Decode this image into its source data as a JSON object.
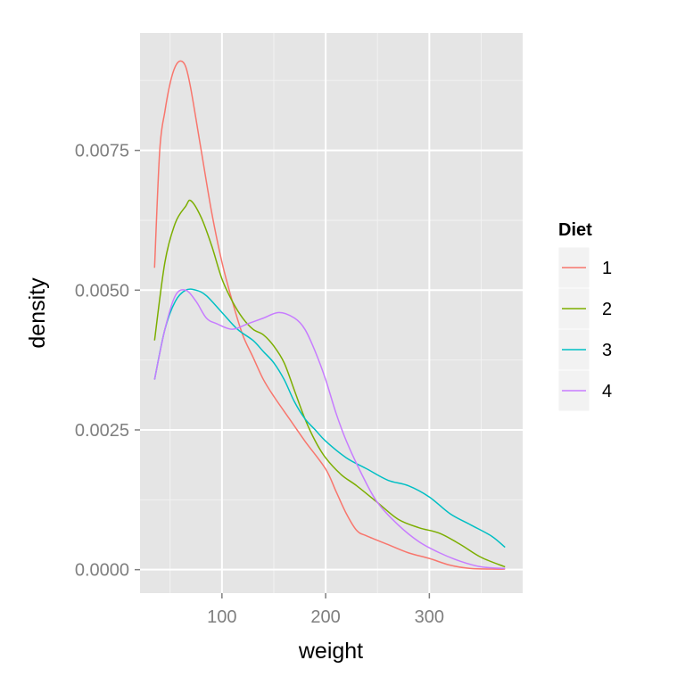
{
  "chart_data": {
    "type": "line",
    "xlabel": "weight",
    "ylabel": "density",
    "xlim": [
      21,
      390
    ],
    "ylim": [
      -0.00042,
      0.0096
    ],
    "x_ticks": [
      {
        "value": 100,
        "label": "100"
      },
      {
        "value": 200,
        "label": "200"
      },
      {
        "value": 300,
        "label": "300"
      }
    ],
    "y_ticks": [
      {
        "value": 0.0,
        "label": "0.0000"
      },
      {
        "value": 0.0025,
        "label": "0.0025"
      },
      {
        "value": 0.005,
        "label": "0.0050"
      },
      {
        "value": 0.0075,
        "label": "0.0075"
      }
    ],
    "grid": true,
    "legend": {
      "title": "Diet",
      "position": "right"
    },
    "series": [
      {
        "name": "1",
        "color": "#F8766D",
        "points": [
          [
            35,
            0.0054
          ],
          [
            40,
            0.0075
          ],
          [
            45,
            0.0082
          ],
          [
            50,
            0.0087
          ],
          [
            55,
            0.009
          ],
          [
            60,
            0.0091
          ],
          [
            65,
            0.009
          ],
          [
            70,
            0.0086
          ],
          [
            80,
            0.0075
          ],
          [
            90,
            0.0064
          ],
          [
            100,
            0.0055
          ],
          [
            110,
            0.0048
          ],
          [
            120,
            0.0042
          ],
          [
            130,
            0.0038
          ],
          [
            140,
            0.0034
          ],
          [
            150,
            0.0031
          ],
          [
            165,
            0.0027
          ],
          [
            180,
            0.0023
          ],
          [
            200,
            0.0018
          ],
          [
            210,
            0.0014
          ],
          [
            220,
            0.001
          ],
          [
            230,
            0.0007
          ],
          [
            240,
            0.0006
          ],
          [
            260,
            0.00045
          ],
          [
            280,
            0.0003
          ],
          [
            300,
            0.0002
          ],
          [
            320,
            8e-05
          ],
          [
            340,
            2e-05
          ],
          [
            360,
            1e-05
          ],
          [
            373,
            1e-05
          ]
        ]
      },
      {
        "name": "2",
        "color": "#7CAE00",
        "points": [
          [
            35,
            0.0041
          ],
          [
            45,
            0.0055
          ],
          [
            55,
            0.0062
          ],
          [
            65,
            0.0065
          ],
          [
            70,
            0.0066
          ],
          [
            80,
            0.0063
          ],
          [
            90,
            0.0058
          ],
          [
            100,
            0.0052
          ],
          [
            110,
            0.0048
          ],
          [
            120,
            0.0045
          ],
          [
            130,
            0.0043
          ],
          [
            140,
            0.0042
          ],
          [
            150,
            0.004
          ],
          [
            160,
            0.0037
          ],
          [
            170,
            0.0032
          ],
          [
            180,
            0.0027
          ],
          [
            190,
            0.0023
          ],
          [
            200,
            0.002
          ],
          [
            215,
            0.0017
          ],
          [
            230,
            0.0015
          ],
          [
            250,
            0.0012
          ],
          [
            270,
            0.0009
          ],
          [
            290,
            0.00075
          ],
          [
            310,
            0.00065
          ],
          [
            330,
            0.00045
          ],
          [
            350,
            0.00022
          ],
          [
            373,
            5e-05
          ]
        ]
      },
      {
        "name": "3",
        "color": "#00BFC4",
        "points": [
          [
            35,
            0.0034
          ],
          [
            45,
            0.0043
          ],
          [
            55,
            0.0048
          ],
          [
            65,
            0.005
          ],
          [
            75,
            0.005
          ],
          [
            85,
            0.0049
          ],
          [
            100,
            0.0046
          ],
          [
            115,
            0.0043
          ],
          [
            130,
            0.0041
          ],
          [
            140,
            0.0039
          ],
          [
            150,
            0.0037
          ],
          [
            160,
            0.0034
          ],
          [
            170,
            0.003
          ],
          [
            180,
            0.0027
          ],
          [
            190,
            0.0025
          ],
          [
            200,
            0.0023
          ],
          [
            220,
            0.002
          ],
          [
            240,
            0.0018
          ],
          [
            260,
            0.0016
          ],
          [
            280,
            0.0015
          ],
          [
            300,
            0.0013
          ],
          [
            320,
            0.001
          ],
          [
            340,
            0.0008
          ],
          [
            360,
            0.0006
          ],
          [
            373,
            0.0004
          ]
        ]
      },
      {
        "name": "4",
        "color": "#C77CFF",
        "points": [
          [
            35,
            0.0034
          ],
          [
            45,
            0.0043
          ],
          [
            55,
            0.0049
          ],
          [
            65,
            0.005
          ],
          [
            75,
            0.0048
          ],
          [
            85,
            0.0045
          ],
          [
            95,
            0.0044
          ],
          [
            110,
            0.0043
          ],
          [
            125,
            0.0044
          ],
          [
            140,
            0.0045
          ],
          [
            155,
            0.0046
          ],
          [
            170,
            0.0045
          ],
          [
            180,
            0.0043
          ],
          [
            190,
            0.0039
          ],
          [
            200,
            0.0034
          ],
          [
            210,
            0.0028
          ],
          [
            220,
            0.0023
          ],
          [
            235,
            0.0017
          ],
          [
            250,
            0.0012
          ],
          [
            270,
            0.0008
          ],
          [
            290,
            0.0005
          ],
          [
            310,
            0.0003
          ],
          [
            330,
            0.00015
          ],
          [
            350,
            5e-05
          ],
          [
            373,
            2e-05
          ]
        ]
      }
    ]
  }
}
